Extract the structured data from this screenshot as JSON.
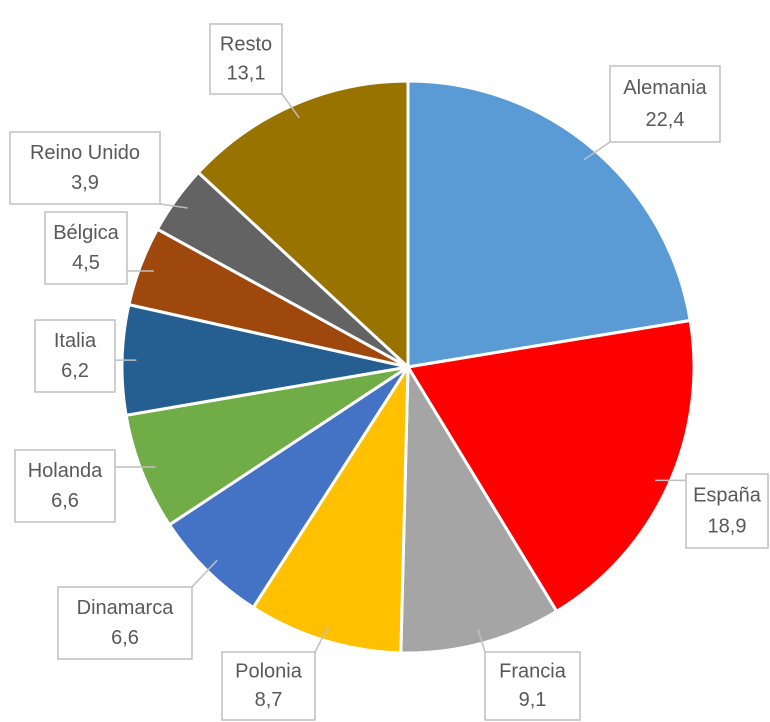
{
  "chart_data": {
    "type": "pie",
    "categories": [
      "Alemania",
      "España",
      "Francia",
      "Polonia",
      "Dinamarca",
      "Holanda",
      "Italia",
      "Bélgica",
      "Reino Unido",
      "Resto"
    ],
    "values": [
      22.4,
      18.9,
      9.1,
      8.7,
      6.6,
      6.6,
      6.2,
      4.5,
      3.9,
      13.1
    ],
    "value_labels": [
      "22,4",
      "18,9",
      "9,1",
      "8,7",
      "6,6",
      "6,6",
      "6,2",
      "4,5",
      "3,9",
      "13,1"
    ],
    "colors": [
      "#5b9bd5",
      "#ff0000",
      "#a5a5a5",
      "#ffc000",
      "#4472c4",
      "#70ad47",
      "#255e91",
      "#9e480e",
      "#636363",
      "#997300"
    ]
  }
}
